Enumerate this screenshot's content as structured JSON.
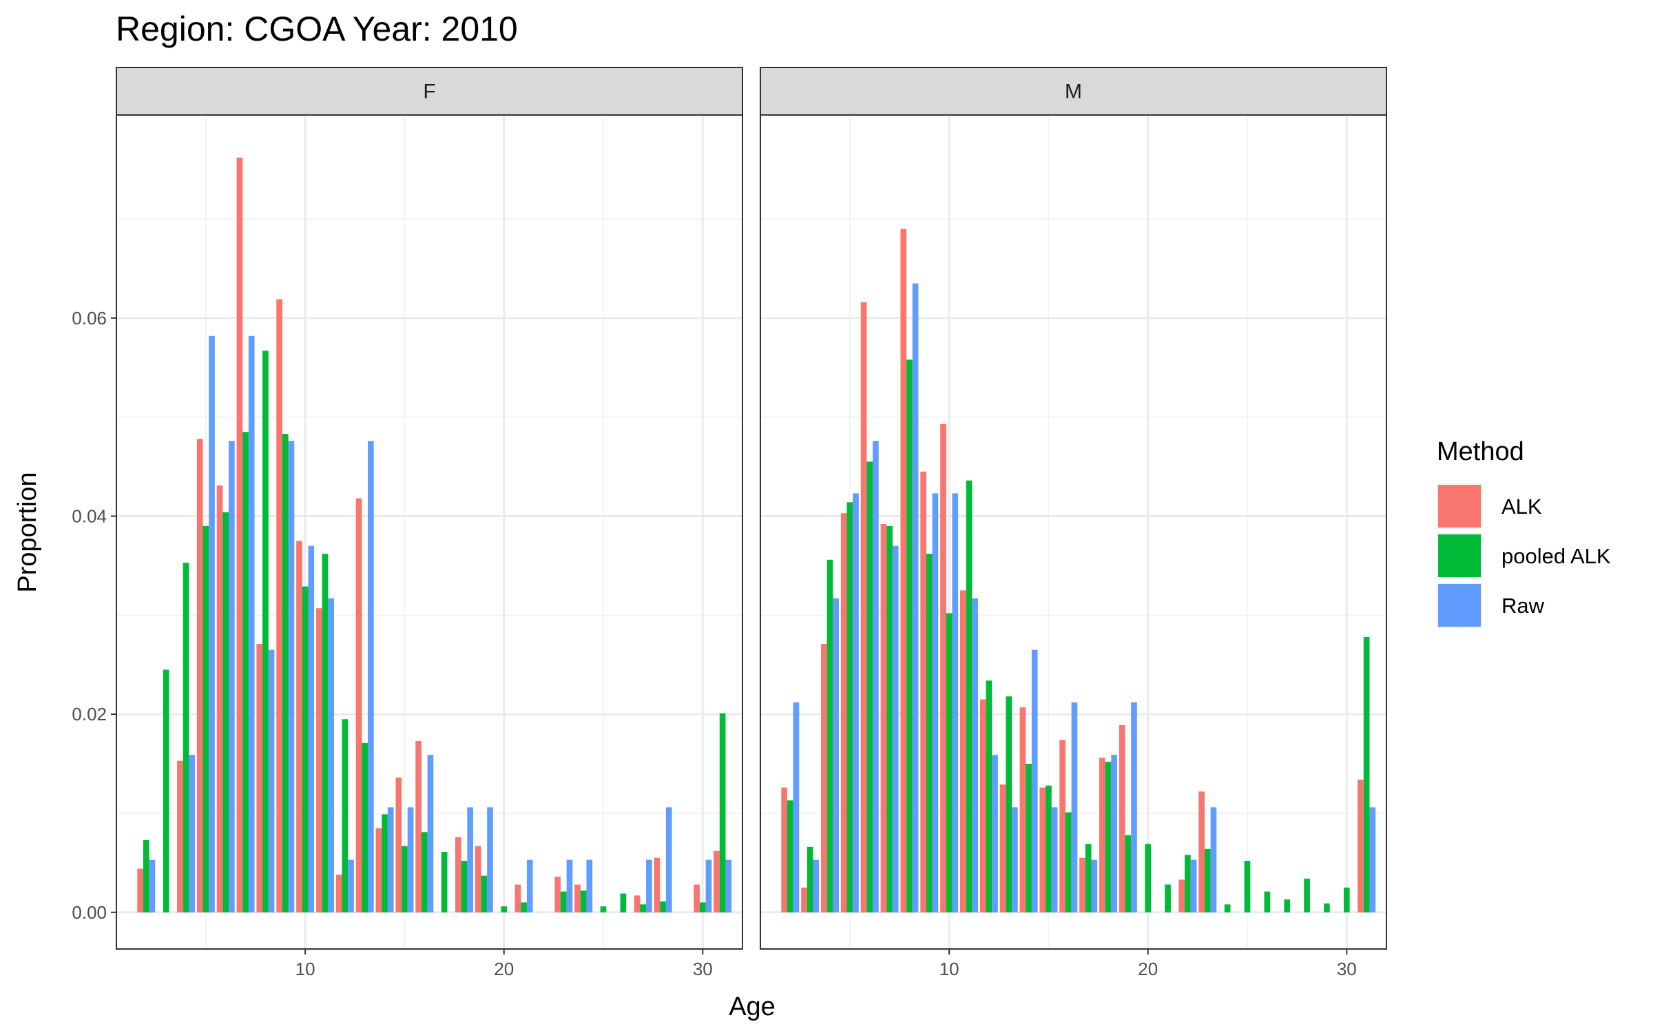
{
  "chart_data": {
    "type": "bar",
    "title": "Region: CGOA Year: 2010",
    "xlabel": "Age",
    "ylabel": "Proportion",
    "xlim": [
      0.5,
      32
    ],
    "ylim": [
      -0.0037,
      0.0805
    ],
    "x_ticks": [
      10,
      20,
      30
    ],
    "x_tick_labels": [
      "10",
      "20",
      "30"
    ],
    "y_ticks": [
      0,
      0.02,
      0.04,
      0.06
    ],
    "y_tick_labels": [
      "0.00",
      "0.02",
      "0.04",
      "0.06"
    ],
    "grid": true,
    "legend": {
      "title": "Method",
      "position": "right",
      "entries": [
        "ALK",
        "pooled ALK",
        "Raw"
      ]
    },
    "colors": {
      "ALK": "#F8766D",
      "pooled ALK": "#00BA38",
      "Raw": "#619CFF"
    },
    "panels": [
      {
        "strip": "F",
        "series": [
          {
            "name": "ALK",
            "points": [
              [
                2,
                0.0044
              ],
              [
                4,
                0.0153
              ],
              [
                5,
                0.0478
              ],
              [
                6,
                0.0431
              ],
              [
                7,
                0.0762
              ],
              [
                8,
                0.0271
              ],
              [
                9,
                0.0619
              ],
              [
                10,
                0.0375
              ],
              [
                11,
                0.0307
              ],
              [
                12,
                0.0038
              ],
              [
                13,
                0.0418
              ],
              [
                14,
                0.0085
              ],
              [
                15,
                0.0136
              ],
              [
                16,
                0.0173
              ],
              [
                18,
                0.0076
              ],
              [
                19,
                0.0067
              ],
              [
                21,
                0.0028
              ],
              [
                23,
                0.0036
              ],
              [
                24,
                0.0028
              ],
              [
                27,
                0.0017
              ],
              [
                28,
                0.0055
              ],
              [
                30,
                0.0028
              ],
              [
                31,
                0.0062
              ]
            ]
          },
          {
            "name": "pooled ALK",
            "points": [
              [
                2,
                0.0073
              ],
              [
                3,
                0.0245
              ],
              [
                4,
                0.0353
              ],
              [
                5,
                0.039
              ],
              [
                6,
                0.0404
              ],
              [
                7,
                0.0485
              ],
              [
                8,
                0.0567
              ],
              [
                9,
                0.0483
              ],
              [
                10,
                0.0329
              ],
              [
                11,
                0.0362
              ],
              [
                12,
                0.0195
              ],
              [
                13,
                0.0171
              ],
              [
                14,
                0.0099
              ],
              [
                15,
                0.0067
              ],
              [
                16,
                0.0081
              ],
              [
                17,
                0.0061
              ],
              [
                18,
                0.0052
              ],
              [
                19,
                0.0037
              ],
              [
                20,
                0.0006
              ],
              [
                21,
                0.001
              ],
              [
                23,
                0.0021
              ],
              [
                24,
                0.0022
              ],
              [
                25,
                0.0006
              ],
              [
                26,
                0.0019
              ],
              [
                27,
                0.0008
              ],
              [
                28,
                0.0011
              ],
              [
                30,
                0.001
              ],
              [
                31,
                0.0201
              ]
            ]
          },
          {
            "name": "Raw",
            "points": [
              [
                2,
                0.0053
              ],
              [
                4,
                0.0159
              ],
              [
                5,
                0.0582
              ],
              [
                6,
                0.0476
              ],
              [
                7,
                0.0582
              ],
              [
                8,
                0.0265
              ],
              [
                9,
                0.0476
              ],
              [
                10,
                0.037
              ],
              [
                11,
                0.0317
              ],
              [
                12,
                0.0053
              ],
              [
                13,
                0.0476
              ],
              [
                14,
                0.0106
              ],
              [
                15,
                0.0106
              ],
              [
                16,
                0.0159
              ],
              [
                18,
                0.0106
              ],
              [
                19,
                0.0106
              ],
              [
                21,
                0.0053
              ],
              [
                23,
                0.0053
              ],
              [
                24,
                0.0053
              ],
              [
                27,
                0.0053
              ],
              [
                28,
                0.0106
              ],
              [
                30,
                0.0053
              ],
              [
                31,
                0.0053
              ]
            ]
          }
        ]
      },
      {
        "strip": "M",
        "series": [
          {
            "name": "ALK",
            "points": [
              [
                2,
                0.0126
              ],
              [
                3,
                0.0025
              ],
              [
                4,
                0.0271
              ],
              [
                5,
                0.0403
              ],
              [
                6,
                0.0616
              ],
              [
                7,
                0.0392
              ],
              [
                8,
                0.069
              ],
              [
                9,
                0.0445
              ],
              [
                10,
                0.0493
              ],
              [
                11,
                0.0325
              ],
              [
                12,
                0.0215
              ],
              [
                13,
                0.0129
              ],
              [
                14,
                0.0207
              ],
              [
                15,
                0.0126
              ],
              [
                16,
                0.0174
              ],
              [
                17,
                0.0055
              ],
              [
                18,
                0.0156
              ],
              [
                19,
                0.0189
              ],
              [
                22,
                0.0033
              ],
              [
                23,
                0.0122
              ],
              [
                31,
                0.0134
              ]
            ]
          },
          {
            "name": "pooled ALK",
            "points": [
              [
                2,
                0.0113
              ],
              [
                3,
                0.0066
              ],
              [
                4,
                0.0356
              ],
              [
                5,
                0.0414
              ],
              [
                6,
                0.0455
              ],
              [
                7,
                0.039
              ],
              [
                8,
                0.0558
              ],
              [
                9,
                0.0362
              ],
              [
                10,
                0.0302
              ],
              [
                11,
                0.0436
              ],
              [
                12,
                0.0234
              ],
              [
                13,
                0.0218
              ],
              [
                14,
                0.015
              ],
              [
                15,
                0.0128
              ],
              [
                16,
                0.0101
              ],
              [
                17,
                0.0069
              ],
              [
                18,
                0.0152
              ],
              [
                19,
                0.0078
              ],
              [
                20,
                0.0069
              ],
              [
                21,
                0.0028
              ],
              [
                22,
                0.0058
              ],
              [
                23,
                0.0064
              ],
              [
                24,
                0.0008
              ],
              [
                25,
                0.0052
              ],
              [
                26,
                0.0021
              ],
              [
                27,
                0.0013
              ],
              [
                28,
                0.0034
              ],
              [
                29,
                0.0009
              ],
              [
                30,
                0.0025
              ],
              [
                31,
                0.0278
              ]
            ]
          },
          {
            "name": "Raw",
            "points": [
              [
                2,
                0.0212
              ],
              [
                3,
                0.0053
              ],
              [
                4,
                0.0317
              ],
              [
                5,
                0.0423
              ],
              [
                6,
                0.0476
              ],
              [
                7,
                0.037
              ],
              [
                8,
                0.0635
              ],
              [
                9,
                0.0423
              ],
              [
                10,
                0.0423
              ],
              [
                11,
                0.0317
              ],
              [
                12,
                0.0159
              ],
              [
                13,
                0.0106
              ],
              [
                14,
                0.0265
              ],
              [
                15,
                0.0106
              ],
              [
                16,
                0.0212
              ],
              [
                17,
                0.0053
              ],
              [
                18,
                0.0159
              ],
              [
                19,
                0.0212
              ],
              [
                22,
                0.0053
              ],
              [
                23,
                0.0106
              ],
              [
                31,
                0.0106
              ]
            ]
          }
        ]
      }
    ]
  }
}
